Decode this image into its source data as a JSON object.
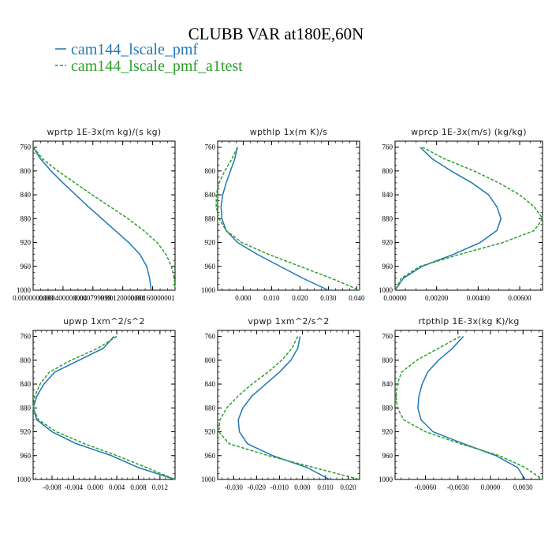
{
  "title": "CLUBB VAR at180E,60N",
  "legend": [
    {
      "label": "cam144_lscale_pmf",
      "color": "#1f77b4",
      "dash": false
    },
    {
      "label": "cam144_lscale_pmf_a1test",
      "color": "#2ca02c",
      "dash": true
    }
  ],
  "chart_data": [
    {
      "type": "line",
      "title": "wprtp  1E-3x(m kg)/(s kg)",
      "xlim": [
        0.0,
        0.0019
      ],
      "ylim": [
        1000,
        750
      ],
      "xticks": [
        0.0,
        0.0004,
        0.0008,
        0.0012,
        0.0016
      ],
      "xtick_labels": [
        "0.0000000000",
        "0.000400000004",
        "0.000799999",
        "0.00120000001",
        "0.00160000001"
      ],
      "yticks": [
        760,
        800,
        840,
        880,
        920,
        960,
        1000
      ],
      "ytick_labels": [
        "760",
        "800",
        "840",
        "880",
        "920",
        "960",
        "1000"
      ],
      "y": [
        760,
        780,
        800,
        820,
        840,
        860,
        880,
        900,
        920,
        940,
        960,
        980,
        1000
      ],
      "series": [
        {
          "name": "cam144_lscale_pmf",
          "values": [
            0.0,
            0.0001,
            0.00024,
            0.0004,
            0.00057,
            0.00074,
            0.00092,
            0.0011,
            0.00128,
            0.00143,
            0.00152,
            0.00156,
            0.00158
          ]
        },
        {
          "name": "cam144_lscale_pmf_a1test",
          "values": [
            0.0,
            0.00013,
            0.00033,
            0.00056,
            0.00079,
            0.00103,
            0.00127,
            0.00148,
            0.00166,
            0.00178,
            0.00185,
            0.00189,
            0.0019
          ]
        }
      ]
    },
    {
      "type": "line",
      "title": "wpthlp  1x(m K)/s",
      "xlim": [
        -0.009,
        0.041
      ],
      "ylim": [
        1000,
        750
      ],
      "xticks": [
        0.0,
        0.01,
        0.02,
        0.03,
        0.04
      ],
      "xtick_labels": [
        "0.000",
        "0.010",
        "0.020",
        "0.030",
        "0.040"
      ],
      "yticks": [
        760,
        800,
        840,
        880,
        920,
        960,
        1000
      ],
      "ytick_labels": [
        "760",
        "800",
        "840",
        "880",
        "920",
        "960",
        "1000"
      ],
      "y": [
        760,
        780,
        800,
        820,
        840,
        860,
        880,
        900,
        920,
        940,
        960,
        980,
        1000
      ],
      "series": [
        {
          "name": "cam144_lscale_pmf",
          "values": [
            -0.002,
            -0.003,
            -0.0045,
            -0.006,
            -0.0072,
            -0.0078,
            -0.0075,
            -0.006,
            -0.002,
            0.005,
            0.013,
            0.021,
            0.03
          ]
        },
        {
          "name": "cam144_lscale_pmf_a1test",
          "values": [
            -0.002,
            -0.004,
            -0.0065,
            -0.0085,
            -0.0095,
            -0.0095,
            -0.0085,
            -0.006,
            -0.0005,
            0.009,
            0.02,
            0.031,
            0.041
          ]
        }
      ]
    },
    {
      "type": "line",
      "title": "wprcp  1E-3x(m/s) (kg/kg)",
      "xlim": [
        0.0,
        0.0071
      ],
      "ylim": [
        1000,
        750
      ],
      "xticks": [
        0.0,
        0.002,
        0.004,
        0.006
      ],
      "xtick_labels": [
        "0.00000",
        "0.00200",
        "0.00400",
        "0.00600"
      ],
      "yticks": [
        760,
        800,
        840,
        880,
        920,
        960,
        1000
      ],
      "ytick_labels": [
        "760",
        "800",
        "840",
        "880",
        "920",
        "960",
        "1000"
      ],
      "y": [
        760,
        780,
        800,
        820,
        840,
        860,
        880,
        900,
        920,
        940,
        960,
        980,
        1000
      ],
      "series": [
        {
          "name": "cam144_lscale_pmf",
          "values": [
            0.0012,
            0.0018,
            0.0027,
            0.0037,
            0.0045,
            0.0049,
            0.0051,
            0.0049,
            0.0041,
            0.0028,
            0.0013,
            0.0004,
            0.0
          ]
        },
        {
          "name": "cam144_lscale_pmf_a1test",
          "values": [
            0.0013,
            0.0024,
            0.0038,
            0.005,
            0.006,
            0.0067,
            0.0071,
            0.0067,
            0.0052,
            0.0031,
            0.0012,
            0.0003,
            0.0
          ]
        }
      ]
    },
    {
      "type": "line",
      "title": "upwp  1xm^2/s^2",
      "xlim": [
        -0.0115,
        0.0148
      ],
      "ylim": [
        1000,
        750
      ],
      "xticks": [
        -0.008,
        -0.004,
        0.0,
        0.004,
        0.008,
        0.012
      ],
      "xtick_labels": [
        "-0.008",
        "-0.004",
        "0.000",
        "0.004",
        "0.008",
        "0.012"
      ],
      "yticks": [
        760,
        800,
        840,
        880,
        920,
        960,
        1000
      ],
      "ytick_labels": [
        "760",
        "800",
        "840",
        "880",
        "920",
        "960",
        "1000"
      ],
      "y": [
        760,
        780,
        800,
        820,
        840,
        860,
        880,
        900,
        920,
        940,
        960,
        980,
        1000
      ],
      "series": [
        {
          "name": "cam144_lscale_pmf",
          "values": [
            0.0035,
            0.0015,
            -0.003,
            -0.0075,
            -0.0095,
            -0.0108,
            -0.0115,
            -0.0108,
            -0.008,
            -0.0035,
            0.003,
            0.008,
            0.0148
          ]
        },
        {
          "name": "cam144_lscale_pmf_a1test",
          "values": [
            0.004,
            0.0005,
            -0.0045,
            -0.0085,
            -0.0102,
            -0.0112,
            -0.0115,
            -0.0105,
            -0.0072,
            -0.002,
            0.004,
            0.0095,
            0.0148
          ]
        }
      ]
    },
    {
      "type": "line",
      "title": "vpwp  1xm^2/s^2",
      "xlim": [
        -0.037,
        0.025
      ],
      "ylim": [
        1000,
        750
      ],
      "xticks": [
        -0.03,
        -0.02,
        -0.01,
        0.0,
        0.01,
        0.02
      ],
      "xtick_labels": [
        "-0.030",
        "-0.020",
        "-0.010",
        "0.000",
        "0.010",
        "0.020"
      ],
      "yticks": [
        760,
        800,
        840,
        880,
        920,
        960,
        1000
      ],
      "ytick_labels": [
        "760",
        "800",
        "840",
        "880",
        "920",
        "960",
        "1000"
      ],
      "y": [
        760,
        780,
        800,
        820,
        840,
        860,
        880,
        900,
        920,
        940,
        960,
        980,
        1000
      ],
      "series": [
        {
          "name": "cam144_lscale_pmf",
          "values": [
            -0.001,
            -0.002,
            -0.005,
            -0.01,
            -0.016,
            -0.022,
            -0.026,
            -0.028,
            -0.0275,
            -0.024,
            -0.013,
            0.002,
            0.012
          ]
        },
        {
          "name": "cam144_lscale_pmf_a1test",
          "values": [
            -0.002,
            -0.0045,
            -0.009,
            -0.015,
            -0.022,
            -0.028,
            -0.033,
            -0.036,
            -0.0365,
            -0.032,
            -0.015,
            0.005,
            0.025
          ]
        }
      ]
    },
    {
      "type": "line",
      "title": "rtpthlp  1E-3x(kg K)/kg",
      "xlim": [
        -0.0088,
        0.0048
      ],
      "ylim": [
        1000,
        750
      ],
      "xticks": [
        -0.006,
        -0.003,
        0.0,
        0.003
      ],
      "xtick_labels": [
        "-0.0060",
        "-0.0030",
        "0.0000",
        "0.0030"
      ],
      "yticks": [
        760,
        800,
        840,
        880,
        920,
        960,
        1000
      ],
      "ytick_labels": [
        "760",
        "800",
        "840",
        "880",
        "920",
        "960",
        "1000"
      ],
      "y": [
        760,
        780,
        800,
        820,
        840,
        860,
        880,
        900,
        920,
        940,
        960,
        980,
        1000
      ],
      "series": [
        {
          "name": "cam144_lscale_pmf",
          "values": [
            -0.0025,
            -0.0035,
            -0.0048,
            -0.0058,
            -0.0063,
            -0.0066,
            -0.0067,
            -0.0064,
            -0.0053,
            -0.0025,
            0.0005,
            0.0025,
            0.0032
          ]
        },
        {
          "name": "cam144_lscale_pmf_a1test",
          "values": [
            -0.0028,
            -0.0048,
            -0.0068,
            -0.0082,
            -0.0086,
            -0.0087,
            -0.0086,
            -0.008,
            -0.006,
            -0.0028,
            0.0008,
            0.0032,
            0.0048
          ]
        }
      ]
    }
  ]
}
